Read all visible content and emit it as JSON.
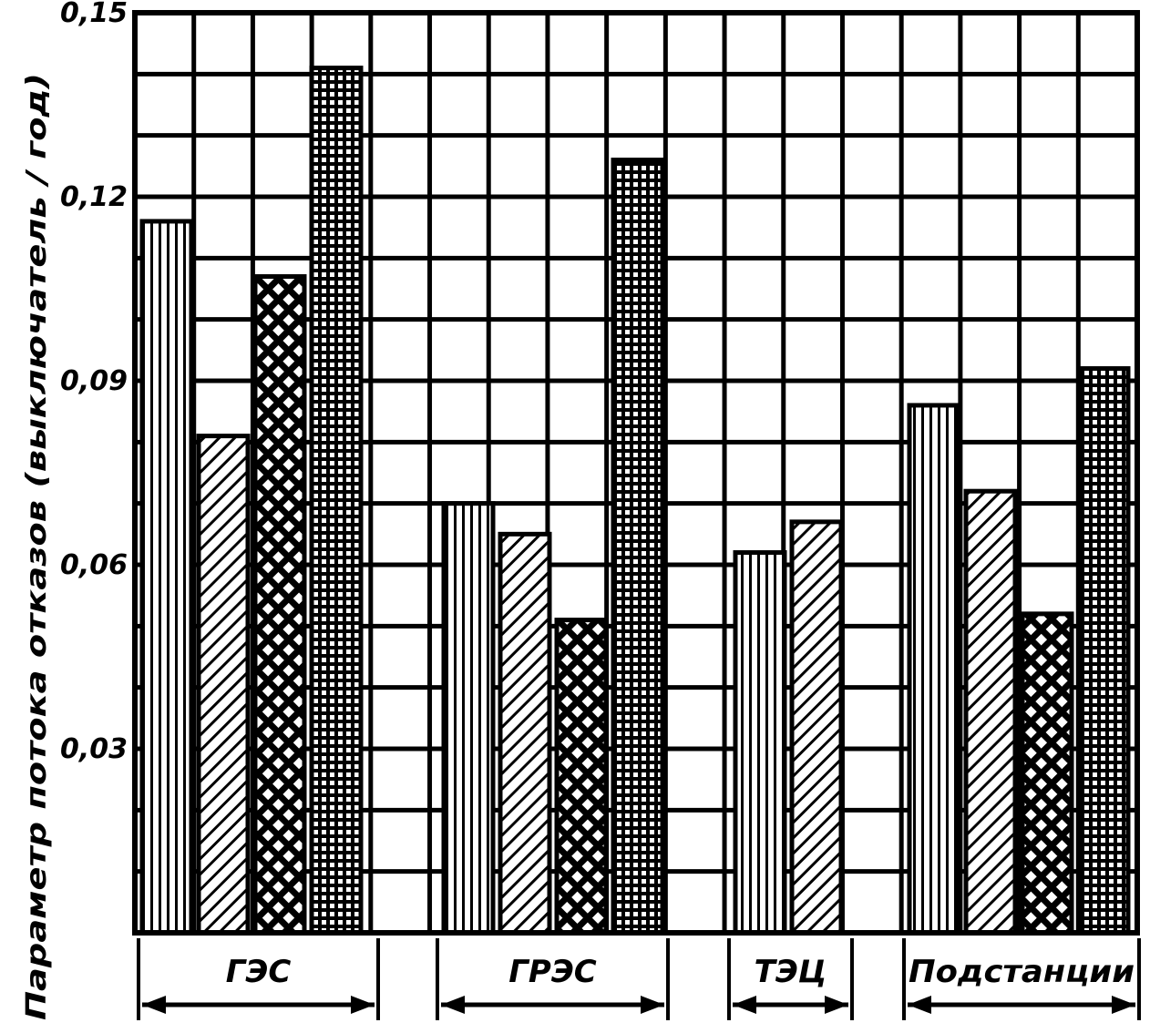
{
  "chart_data": {
    "type": "bar",
    "title": "",
    "xlabel": "",
    "ylabel": "Параметр потока отказов (выключатель / год)",
    "ylim": [
      0,
      0.15
    ],
    "yticks": [
      {
        "value": 0.03,
        "label": "0,03"
      },
      {
        "value": 0.06,
        "label": "0,06"
      },
      {
        "value": 0.09,
        "label": "0,09"
      },
      {
        "value": 0.12,
        "label": "0,12"
      },
      {
        "value": 0.15,
        "label": "0,15"
      }
    ],
    "grid": true,
    "legend": "none",
    "groups": [
      {
        "label": "ГЭС",
        "bars": [
          {
            "pattern": "vertical",
            "value": 0.116
          },
          {
            "pattern": "diagonal",
            "value": 0.081
          },
          {
            "pattern": "crosshatch",
            "value": 0.107
          },
          {
            "pattern": "grid",
            "value": 0.141
          }
        ]
      },
      {
        "label": "ГРЭС",
        "bars": [
          {
            "pattern": "vertical",
            "value": 0.07
          },
          {
            "pattern": "diagonal",
            "value": 0.065
          },
          {
            "pattern": "crosshatch",
            "value": 0.051
          },
          {
            "pattern": "grid",
            "value": 0.126
          }
        ]
      },
      {
        "label": "ТЭЦ",
        "bars": [
          {
            "pattern": "vertical",
            "value": 0.062
          },
          {
            "pattern": "diagonal",
            "value": 0.067
          }
        ]
      },
      {
        "label": "Подстанции",
        "bars": [
          {
            "pattern": "vertical",
            "value": 0.086
          },
          {
            "pattern": "diagonal",
            "value": 0.072
          },
          {
            "pattern": "crosshatch",
            "value": 0.052
          },
          {
            "pattern": "grid",
            "value": 0.092
          }
        ]
      }
    ]
  }
}
